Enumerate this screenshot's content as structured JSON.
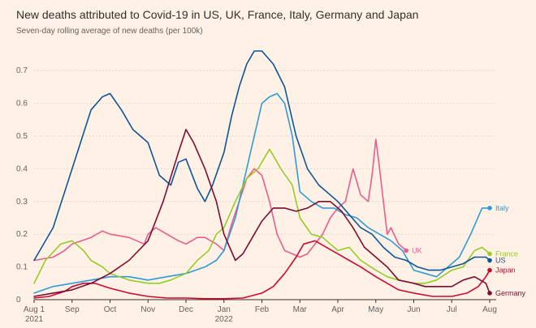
{
  "chart_data": {
    "type": "line",
    "title": "New deaths attributed to Covid-19 in US, UK, France, Italy, Germany and Japan",
    "subtitle": "Seven-day rolling average of new deaths (per 100k)",
    "xlabel": "",
    "ylabel": "",
    "ylim": [
      0,
      0.75
    ],
    "yticks": [
      0,
      0.1,
      0.2,
      0.3,
      0.4,
      0.5,
      0.6,
      0.7
    ],
    "ytick_labels": [
      "0",
      "0.1",
      "0.2",
      "0.3",
      "0.4",
      "0.5",
      "0.6",
      "0.7"
    ],
    "xlim": [
      0,
      12
    ],
    "xticks": [
      0,
      1,
      2,
      3,
      4,
      5,
      6,
      7,
      8,
      9,
      10,
      11,
      12
    ],
    "xtick_labels": [
      "Aug 1",
      "Sep",
      "Oct",
      "Nov",
      "Dec",
      "Jan",
      "Feb",
      "Mar",
      "Apr",
      "May",
      "Jun",
      "Jul",
      "Aug"
    ],
    "xtick_sublabels": [
      {
        "index": 0,
        "label": "2021"
      },
      {
        "index": 5,
        "label": "2022"
      }
    ],
    "x_unit": "months since Aug 1 2021",
    "grid": true,
    "series": [
      {
        "name": "UK",
        "color": "#e95d8c",
        "x": [
          0,
          0.5,
          0.8,
          1,
          1.5,
          1.8,
          2,
          2.5,
          2.9,
          3,
          3.2,
          3.5,
          3.8,
          4,
          4.3,
          4.5,
          4.8,
          5,
          5.2,
          5.4,
          5.6,
          5.8,
          6,
          6.2,
          6.4,
          6.6,
          6.8,
          7,
          7.2,
          7.4,
          7.6,
          7.8,
          8,
          8.2,
          8.4,
          8.6,
          8.8,
          8.9,
          9,
          9.1,
          9.2,
          9.3,
          9.4,
          9.6,
          9.8
        ],
        "values": [
          0.12,
          0.13,
          0.15,
          0.17,
          0.19,
          0.21,
          0.2,
          0.19,
          0.17,
          0.2,
          0.22,
          0.2,
          0.18,
          0.17,
          0.19,
          0.19,
          0.17,
          0.15,
          0.23,
          0.3,
          0.37,
          0.4,
          0.38,
          0.3,
          0.2,
          0.15,
          0.14,
          0.13,
          0.14,
          0.17,
          0.2,
          0.25,
          0.28,
          0.3,
          0.4,
          0.32,
          0.3,
          0.38,
          0.49,
          0.4,
          0.3,
          0.2,
          0.22,
          0.17,
          0.15
        ]
      },
      {
        "name": "Italy",
        "color": "#2e9bd6",
        "x": [
          0,
          0.5,
          1,
          1.5,
          2,
          2.5,
          3,
          3.5,
          4,
          4.5,
          4.8,
          5,
          5.3,
          5.5,
          5.8,
          6,
          6.2,
          6.4,
          6.6,
          6.8,
          7,
          7.3,
          7.6,
          7.9,
          8.2,
          8.5,
          8.8,
          9.1,
          9.4,
          9.7,
          10,
          10.3,
          10.6,
          10.9,
          11.2,
          11.5,
          11.8,
          12
        ],
        "values": [
          0.02,
          0.04,
          0.05,
          0.06,
          0.07,
          0.07,
          0.06,
          0.07,
          0.08,
          0.1,
          0.12,
          0.15,
          0.25,
          0.35,
          0.5,
          0.6,
          0.62,
          0.63,
          0.6,
          0.5,
          0.33,
          0.3,
          0.28,
          0.28,
          0.26,
          0.25,
          0.22,
          0.2,
          0.18,
          0.15,
          0.09,
          0.08,
          0.07,
          0.1,
          0.13,
          0.2,
          0.28,
          0.28
        ]
      },
      {
        "name": "France",
        "color": "#96cc28",
        "x": [
          0,
          0.3,
          0.7,
          1,
          1.3,
          1.5,
          1.8,
          2,
          2.5,
          3,
          3.3,
          3.6,
          4,
          4.3,
          4.6,
          4.8,
          5,
          5.3,
          5.6,
          5.9,
          6,
          6.2,
          6.5,
          6.8,
          7,
          7.3,
          7.6,
          8,
          8.3,
          8.6,
          9,
          9.3,
          9.6,
          10,
          10.3,
          10.6,
          11,
          11.3,
          11.6,
          11.8,
          12
        ],
        "values": [
          0.05,
          0.12,
          0.17,
          0.18,
          0.15,
          0.12,
          0.1,
          0.08,
          0.06,
          0.05,
          0.05,
          0.06,
          0.08,
          0.12,
          0.15,
          0.2,
          0.22,
          0.3,
          0.37,
          0.4,
          0.42,
          0.46,
          0.4,
          0.35,
          0.25,
          0.2,
          0.19,
          0.15,
          0.16,
          0.12,
          0.09,
          0.07,
          0.06,
          0.05,
          0.05,
          0.06,
          0.09,
          0.1,
          0.15,
          0.16,
          0.14
        ]
      },
      {
        "name": "US",
        "color": "#0f5499",
        "x": [
          0,
          0.5,
          1,
          1.5,
          1.8,
          2,
          2.3,
          2.6,
          3,
          3.3,
          3.6,
          3.8,
          4,
          4.3,
          4.5,
          4.7,
          5,
          5.2,
          5.4,
          5.6,
          5.8,
          6,
          6.3,
          6.6,
          6.9,
          7.2,
          7.5,
          7.8,
          8,
          8.3,
          8.6,
          8.9,
          9.2,
          9.5,
          9.8,
          10.1,
          10.4,
          10.7,
          11,
          11.3,
          11.6,
          11.9,
          12
        ],
        "values": [
          0.12,
          0.22,
          0.4,
          0.58,
          0.62,
          0.63,
          0.58,
          0.52,
          0.48,
          0.38,
          0.35,
          0.42,
          0.43,
          0.34,
          0.3,
          0.35,
          0.45,
          0.56,
          0.65,
          0.72,
          0.76,
          0.76,
          0.72,
          0.65,
          0.5,
          0.4,
          0.35,
          0.32,
          0.3,
          0.26,
          0.22,
          0.2,
          0.16,
          0.13,
          0.12,
          0.1,
          0.09,
          0.09,
          0.1,
          0.11,
          0.13,
          0.13,
          0.12
        ]
      },
      {
        "name": "Japan",
        "color": "#cc0a31",
        "x": [
          0,
          0.4,
          0.8,
          1,
          1.3,
          1.6,
          2,
          2.5,
          3,
          3.5,
          4,
          4.5,
          5,
          5.5,
          6,
          6.3,
          6.6,
          6.9,
          7.1,
          7.4,
          7.7,
          8,
          8.3,
          8.6,
          9,
          9.3,
          9.6,
          10,
          10.5,
          11,
          11.4,
          11.7,
          11.9,
          12
        ],
        "values": [
          0.005,
          0.01,
          0.025,
          0.04,
          0.05,
          0.05,
          0.035,
          0.02,
          0.01,
          0.005,
          0.005,
          0.003,
          0.003,
          0.005,
          0.02,
          0.04,
          0.08,
          0.13,
          0.17,
          0.18,
          0.16,
          0.14,
          0.12,
          0.1,
          0.07,
          0.05,
          0.03,
          0.02,
          0.01,
          0.01,
          0.02,
          0.04,
          0.07,
          0.09
        ]
      },
      {
        "name": "Germany",
        "color": "#7d0c31",
        "x": [
          0,
          0.5,
          1,
          1.5,
          2,
          2.5,
          3,
          3.4,
          3.8,
          4,
          4.2,
          4.5,
          4.8,
          5,
          5.3,
          5.5,
          5.8,
          6,
          6.3,
          6.6,
          6.9,
          7.2,
          7.5,
          7.8,
          8.1,
          8.4,
          8.7,
          9,
          9.3,
          9.6,
          10,
          10.3,
          10.6,
          11,
          11.3,
          11.6,
          11.9,
          12
        ],
        "values": [
          0.01,
          0.02,
          0.03,
          0.05,
          0.08,
          0.12,
          0.18,
          0.3,
          0.45,
          0.52,
          0.48,
          0.4,
          0.3,
          0.2,
          0.12,
          0.14,
          0.2,
          0.24,
          0.28,
          0.28,
          0.27,
          0.28,
          0.3,
          0.3,
          0.27,
          0.22,
          0.16,
          0.13,
          0.1,
          0.06,
          0.05,
          0.04,
          0.04,
          0.04,
          0.06,
          0.07,
          0.05,
          0.02
        ]
      }
    ],
    "end_labels": [
      {
        "name": "Italy",
        "label": "Italy",
        "color": "#2e9bd6",
        "value": 0.28
      },
      {
        "name": "UK",
        "label": "UK",
        "color": "#e95d8c",
        "value": 0.15
      },
      {
        "name": "France",
        "label": "France",
        "color": "#96cc28",
        "value": 0.14
      },
      {
        "name": "US",
        "label": "US",
        "color": "#0f5499",
        "value": 0.12
      },
      {
        "name": "Japan",
        "label": "Japan",
        "color": "#cc0a31",
        "value": 0.09
      },
      {
        "name": "Germany",
        "label": "Germany",
        "color": "#7d0c31",
        "value": 0.02
      }
    ]
  }
}
